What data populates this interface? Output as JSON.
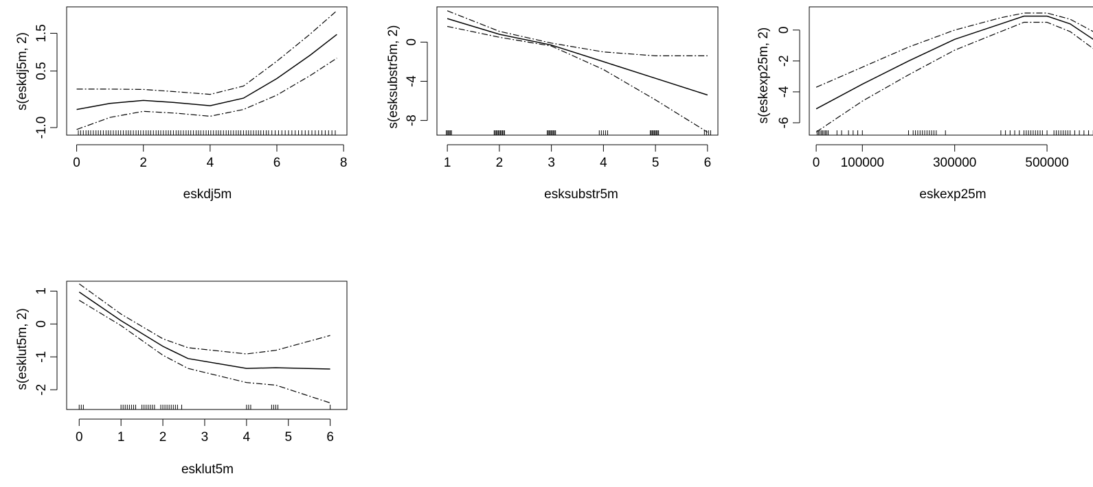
{
  "chart_data": [
    {
      "type": "line",
      "xlabel": "eskdj5m",
      "ylabel": "s(eskdj5m, 2)",
      "xlim": [
        -0.3,
        8.1
      ],
      "ylim": [
        -1.2,
        2.2
      ],
      "xticks": [
        0,
        2,
        4,
        6,
        8
      ],
      "xtick_labels": [
        "0",
        "2",
        "4",
        "6",
        "8"
      ],
      "yticks": [
        -1.0,
        0.5,
        1.5
      ],
      "ytick_labels": [
        "-1.0",
        "0.5",
        "1.5"
      ],
      "series": [
        {
          "role": "fit",
          "x": [
            0,
            1,
            2,
            3,
            4,
            5,
            6,
            7,
            7.8
          ],
          "values": [
            -0.52,
            -0.36,
            -0.28,
            -0.34,
            -0.42,
            -0.22,
            0.3,
            0.92,
            1.47
          ]
        },
        {
          "role": "upper",
          "x": [
            0,
            1,
            2,
            3,
            4,
            5,
            6,
            7,
            7.8
          ],
          "values": [
            0.02,
            0.02,
            0.01,
            -0.05,
            -0.12,
            0.1,
            0.76,
            1.48,
            2.1
          ]
        },
        {
          "role": "lower",
          "x": [
            0,
            1,
            2,
            3,
            4,
            5,
            6,
            7,
            7.8
          ],
          "values": [
            -1.05,
            -0.73,
            -0.57,
            -0.62,
            -0.7,
            -0.52,
            -0.14,
            0.38,
            0.84
          ]
        }
      ],
      "rug": [
        0.05,
        0.12,
        0.2,
        0.28,
        0.35,
        0.42,
        0.5,
        0.58,
        0.65,
        0.72,
        0.8,
        0.88,
        0.95,
        1.02,
        1.1,
        1.18,
        1.25,
        1.32,
        1.4,
        1.48,
        1.55,
        1.62,
        1.7,
        1.78,
        1.85,
        1.92,
        2.0,
        2.08,
        2.15,
        2.22,
        2.3,
        2.38,
        2.45,
        2.52,
        2.6,
        2.68,
        2.75,
        2.82,
        2.9,
        2.98,
        3.05,
        3.12,
        3.2,
        3.28,
        3.35,
        3.42,
        3.5,
        3.58,
        3.65,
        3.72,
        3.8,
        3.88,
        3.95,
        4.02,
        4.1,
        4.18,
        4.25,
        4.32,
        4.4,
        4.48,
        4.55,
        4.62,
        4.7,
        4.78,
        4.85,
        4.92,
        5.0,
        5.08,
        5.15,
        5.22,
        5.3,
        5.38,
        5.45,
        5.52,
        5.6,
        5.68,
        5.75,
        5.85,
        5.95,
        6.05,
        6.15,
        6.25,
        6.35,
        6.45,
        6.55,
        6.65,
        6.75,
        6.85,
        6.95,
        7.05,
        7.15,
        7.25,
        7.35,
        7.45,
        7.55,
        7.65,
        7.75
      ]
    },
    {
      "type": "line",
      "xlabel": "esksubstr5m",
      "ylabel": "s(esksubstr5m, 2)",
      "xlim": [
        0.8,
        6.2
      ],
      "ylim": [
        -9.5,
        3.6
      ],
      "xticks": [
        1,
        2,
        3,
        4,
        5,
        6
      ],
      "xtick_labels": [
        "1",
        "2",
        "3",
        "4",
        "5",
        "6"
      ],
      "yticks": [
        0,
        -4,
        -8
      ],
      "ytick_labels": [
        "0",
        "-4",
        "-8"
      ],
      "series": [
        {
          "role": "fit",
          "x": [
            1,
            2,
            3,
            4,
            5,
            6
          ],
          "values": [
            2.4,
            0.8,
            -0.3,
            -2.0,
            -3.7,
            -5.4
          ]
        },
        {
          "role": "upper",
          "x": [
            1,
            2,
            3,
            4,
            5,
            6
          ],
          "values": [
            3.2,
            1.1,
            -0.1,
            -1.0,
            -1.4,
            -1.4
          ]
        },
        {
          "role": "lower",
          "x": [
            1,
            2,
            3,
            4,
            5,
            6
          ],
          "values": [
            1.6,
            0.5,
            -0.4,
            -2.8,
            -5.9,
            -9.2
          ]
        }
      ],
      "rug": [
        0.98,
        1.0,
        1.02,
        1.04,
        1.06,
        1.08,
        1.9,
        1.92,
        1.94,
        1.96,
        1.98,
        2.0,
        2.02,
        2.04,
        2.06,
        2.08,
        2.1,
        2.92,
        2.94,
        2.96,
        2.98,
        3.0,
        3.02,
        3.04,
        3.06,
        3.08,
        3.92,
        3.96,
        4.0,
        4.04,
        4.08,
        4.9,
        4.92,
        4.94,
        4.96,
        4.98,
        5.0,
        5.02,
        5.04,
        5.06,
        5.94,
        5.98,
        6.02,
        6.06
      ]
    },
    {
      "type": "line",
      "xlabel": "eskexp25m",
      "ylabel": "s(eskexp25m, 2)",
      "xlim": [
        -15000,
        610000
      ],
      "ylim": [
        -6.8,
        1.5
      ],
      "xticks": [
        0,
        100000,
        300000,
        500000
      ],
      "xtick_labels": [
        "0",
        "100000",
        "300000",
        "500000"
      ],
      "yticks": [
        0,
        -2,
        -4,
        -6
      ],
      "ytick_labels": [
        "0",
        "-2",
        "-4",
        "-6"
      ],
      "series": [
        {
          "role": "fit",
          "x": [
            0,
            100000,
            200000,
            300000,
            400000,
            450000,
            500000,
            550000,
            600000
          ],
          "values": [
            -5.1,
            -3.5,
            -2.0,
            -0.6,
            0.4,
            0.9,
            0.9,
            0.4,
            -0.6
          ]
        },
        {
          "role": "upper",
          "x": [
            0,
            100000,
            200000,
            300000,
            400000,
            450000,
            500000,
            550000,
            600000
          ],
          "values": [
            -3.7,
            -2.4,
            -1.1,
            0.0,
            0.8,
            1.1,
            1.1,
            0.7,
            -0.1
          ]
        },
        {
          "role": "lower",
          "x": [
            0,
            100000,
            200000,
            300000,
            400000,
            450000,
            500000,
            550000,
            600000
          ],
          "values": [
            -6.6,
            -4.6,
            -2.9,
            -1.3,
            -0.1,
            0.5,
            0.5,
            -0.1,
            -1.2
          ]
        }
      ],
      "rug": [
        2000,
        5000,
        8000,
        11000,
        14000,
        17000,
        20000,
        23000,
        26000,
        45000,
        55000,
        70000,
        80000,
        90000,
        100000,
        200000,
        210000,
        215000,
        220000,
        225000,
        230000,
        235000,
        240000,
        245000,
        250000,
        255000,
        260000,
        280000,
        400000,
        410000,
        420000,
        430000,
        440000,
        450000,
        455000,
        460000,
        465000,
        470000,
        475000,
        480000,
        485000,
        490000,
        500000,
        515000,
        520000,
        525000,
        530000,
        535000,
        540000,
        545000,
        550000,
        560000,
        570000,
        580000,
        590000,
        600000
      ]
    },
    {
      "type": "line",
      "xlabel": "esklut5m",
      "ylabel": "s(esklut5m, 2)",
      "xlim": [
        -0.3,
        6.4
      ],
      "ylim": [
        -2.6,
        1.3
      ],
      "xticks": [
        0,
        1,
        2,
        3,
        4,
        5,
        6
      ],
      "xtick_labels": [
        "0",
        "1",
        "2",
        "3",
        "4",
        "5",
        "6"
      ],
      "yticks": [
        1,
        0,
        -1,
        -2
      ],
      "ytick_labels": [
        "1",
        "0",
        "-1",
        "-2"
      ],
      "series": [
        {
          "role": "fit",
          "x": [
            0,
            1,
            2,
            2.6,
            4,
            4.7,
            6
          ],
          "values": [
            0.97,
            0.1,
            -0.68,
            -1.05,
            -1.35,
            -1.33,
            -1.37
          ]
        },
        {
          "role": "upper",
          "x": [
            0,
            1,
            2,
            2.6,
            4,
            4.7,
            6
          ],
          "values": [
            1.22,
            0.3,
            -0.45,
            -0.72,
            -0.91,
            -0.8,
            -0.35
          ]
        },
        {
          "role": "lower",
          "x": [
            0,
            1,
            2,
            2.6,
            4,
            4.7,
            6
          ],
          "values": [
            0.72,
            -0.05,
            -0.95,
            -1.35,
            -1.78,
            -1.86,
            -2.4
          ]
        }
      ],
      "rug": [
        0.0,
        0.05,
        0.1,
        1.0,
        1.05,
        1.1,
        1.15,
        1.2,
        1.25,
        1.3,
        1.35,
        1.5,
        1.55,
        1.6,
        1.65,
        1.7,
        1.75,
        1.8,
        1.95,
        2.0,
        2.05,
        2.1,
        2.15,
        2.2,
        2.25,
        2.3,
        2.35,
        2.45,
        4.0,
        4.05,
        4.1,
        4.6,
        4.65,
        4.7,
        4.75,
        6.0
      ]
    }
  ]
}
